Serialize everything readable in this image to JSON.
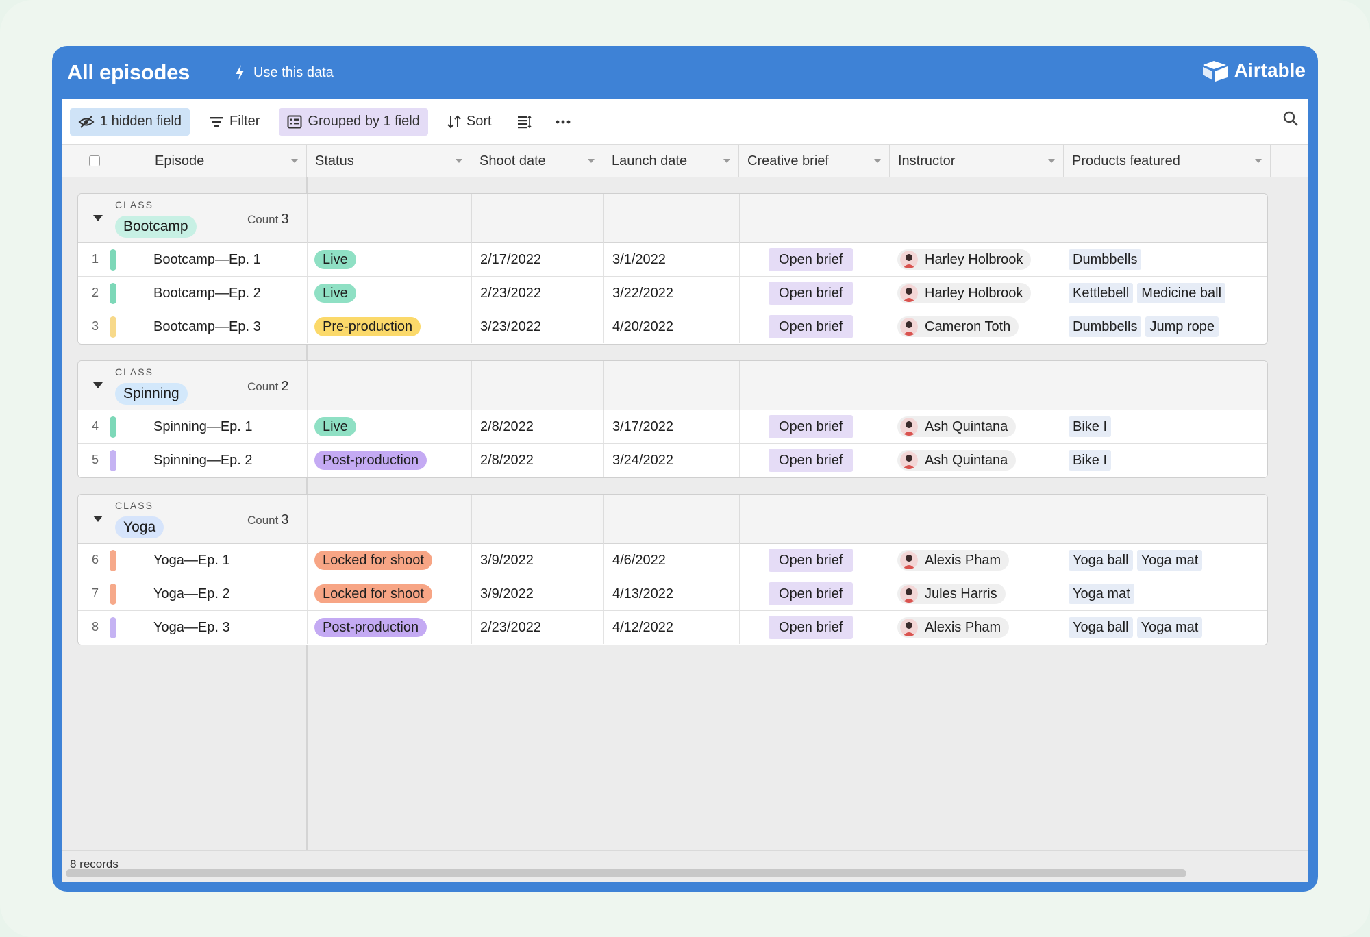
{
  "window": {
    "title": "All episodes",
    "use_data_label": "Use this data",
    "brand": "Airtable"
  },
  "toolbar": {
    "hidden_field_label": "1 hidden field",
    "filter_label": "Filter",
    "grouped_label": "Grouped by 1 field",
    "sort_label": "Sort"
  },
  "columns": {
    "episode": "Episode",
    "status": "Status",
    "shoot_date": "Shoot date",
    "launch_date": "Launch date",
    "creative_brief": "Creative brief",
    "instructor": "Instructor",
    "products": "Products featured"
  },
  "group_label": "CLASS",
  "count_label": "Count",
  "groups": [
    {
      "name": "Bootcamp",
      "count": "3",
      "pill_color": "#c7f0e4",
      "rows": [
        {
          "num": "1",
          "episode": "Bootcamp—Ep. 1",
          "bar_color": "#7dd8b8",
          "status": "Live",
          "status_color": "#8fe0c4",
          "shoot": "2/17/2022",
          "launch": "3/1/2022",
          "brief": "Open brief",
          "instructor": "Harley Holbrook",
          "products": [
            "Dumbbells"
          ]
        },
        {
          "num": "2",
          "episode": "Bootcamp—Ep. 2",
          "bar_color": "#7dd8b8",
          "status": "Live",
          "status_color": "#8fe0c4",
          "shoot": "2/23/2022",
          "launch": "3/22/2022",
          "brief": "Open brief",
          "instructor": "Harley Holbrook",
          "products": [
            "Kettlebell",
            "Medicine ball"
          ]
        },
        {
          "num": "3",
          "episode": "Bootcamp—Ep. 3",
          "bar_color": "#f7d98a",
          "status": "Pre-production",
          "status_color": "#fbd96a",
          "shoot": "3/23/2022",
          "launch": "4/20/2022",
          "brief": "Open brief",
          "instructor": "Cameron Toth",
          "products": [
            "Dumbbells",
            "Jump rope"
          ]
        }
      ]
    },
    {
      "name": "Spinning",
      "count": "2",
      "pill_color": "#d3e8fb",
      "rows": [
        {
          "num": "4",
          "episode": "Spinning—Ep. 1",
          "bar_color": "#7dd8b8",
          "status": "Live",
          "status_color": "#8fe0c4",
          "shoot": "2/8/2022",
          "launch": "3/17/2022",
          "brief": "Open brief",
          "instructor": "Ash Quintana",
          "products": [
            "Bike I"
          ]
        },
        {
          "num": "5",
          "episode": "Spinning—Ep. 2",
          "bar_color": "#c5b3f3",
          "status": "Post-production",
          "status_color": "#c4aaf3",
          "shoot": "2/8/2022",
          "launch": "3/24/2022",
          "brief": "Open brief",
          "instructor": "Ash Quintana",
          "products": [
            "Bike I"
          ]
        }
      ]
    },
    {
      "name": "Yoga",
      "count": "3",
      "pill_color": "#d6e4fb",
      "rows": [
        {
          "num": "6",
          "episode": "Yoga—Ep. 1",
          "bar_color": "#f6a98a",
          "status": "Locked for shoot",
          "status_color": "#f7a585",
          "shoot": "3/9/2022",
          "launch": "4/6/2022",
          "brief": "Open brief",
          "instructor": "Alexis Pham",
          "products": [
            "Yoga ball",
            "Yoga mat"
          ]
        },
        {
          "num": "7",
          "episode": "Yoga—Ep. 2",
          "bar_color": "#f6a98a",
          "status": "Locked for shoot",
          "status_color": "#f7a585",
          "shoot": "3/9/2022",
          "launch": "4/13/2022",
          "brief": "Open brief",
          "instructor": "Jules Harris",
          "products": [
            "Yoga mat"
          ]
        },
        {
          "num": "8",
          "episode": "Yoga—Ep. 3",
          "bar_color": "#c5b3f3",
          "status": "Post-production",
          "status_color": "#c4aaf3",
          "shoot": "2/23/2022",
          "launch": "4/12/2022",
          "brief": "Open brief",
          "instructor": "Alexis Pham",
          "products": [
            "Yoga ball",
            "Yoga mat"
          ]
        }
      ]
    }
  ],
  "footer": {
    "records_label": "8 records"
  }
}
